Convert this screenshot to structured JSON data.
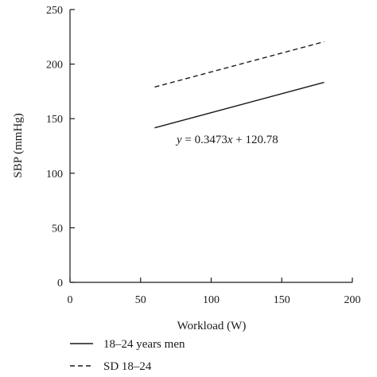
{
  "chart_data": {
    "type": "line",
    "xlabel": "Workload (W)",
    "ylabel": "SBP (mmHg)",
    "xlim": [
      0,
      200
    ],
    "ylim": [
      0,
      250
    ],
    "xticks": [
      0,
      50,
      100,
      150,
      200
    ],
    "yticks": [
      0,
      50,
      100,
      150,
      200,
      250
    ],
    "grid": false,
    "legend_position": "bottom-left",
    "series": [
      {
        "name": "18–24 years men",
        "style": "solid",
        "x": [
          60,
          180
        ],
        "y": [
          141.6,
          183.3
        ]
      },
      {
        "name": "SD 18–24",
        "style": "dashed",
        "x": [
          60,
          180
        ],
        "y": [
          179,
          220.5
        ]
      }
    ],
    "annotation": {
      "text": "y = 0.3473x + 120.78",
      "at_data": [
        140,
        148
      ]
    }
  },
  "colors": {
    "line": "#1a1a1a",
    "axis": "#1a1a1a"
  }
}
